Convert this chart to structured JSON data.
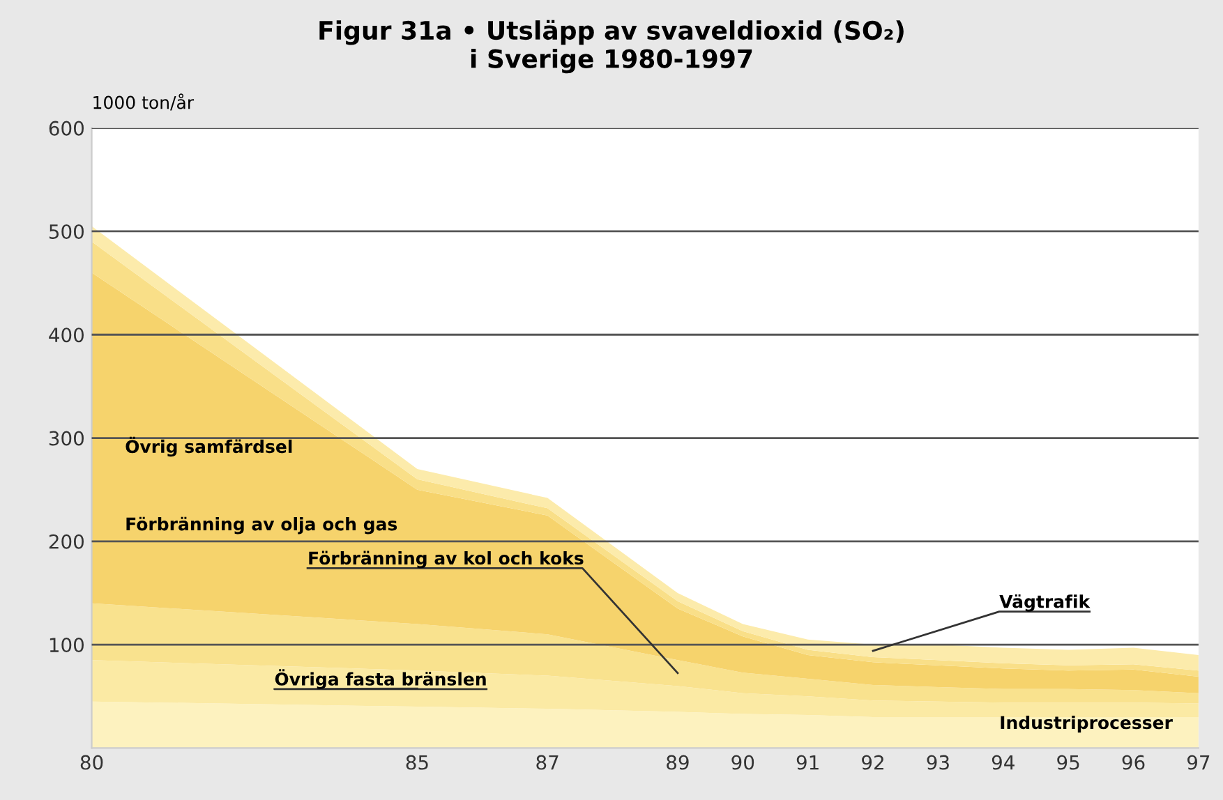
{
  "chart_data": {
    "type": "area",
    "stacked": true,
    "title": "Figur 31a • Utsläpp av svaveldioxid (SO₂)\ni Sverige 1980-1997",
    "ylabel": "1000 ton/år",
    "x": [
      1980,
      1985,
      1987,
      1989,
      1990,
      1991,
      1992,
      1993,
      1994,
      1995,
      1996,
      1997
    ],
    "series": [
      {
        "name": "Industriprocesser",
        "color": "#fdf2bf",
        "values": [
          45,
          40,
          38,
          35,
          33,
          32,
          30,
          30,
          30,
          30,
          30,
          30
        ]
      },
      {
        "name": "Övriga fasta bränslen",
        "color": "#fbeaa4",
        "values": [
          40,
          35,
          32,
          25,
          20,
          18,
          16,
          15,
          14,
          14,
          14,
          13
        ]
      },
      {
        "name": "Förbränning av kol och koks",
        "color": "#f9e28e",
        "values": [
          55,
          45,
          40,
          25,
          20,
          17,
          15,
          14,
          13,
          13,
          12,
          10
        ]
      },
      {
        "name": "Förbränning av olja och gas",
        "color": "#f6d36c",
        "values": [
          320,
          130,
          115,
          50,
          35,
          23,
          22,
          21,
          20,
          18,
          20,
          16
        ]
      },
      {
        "name": "Övrig samfärdsel",
        "color": "#f9df88",
        "values": [
          30,
          10,
          7,
          7,
          5,
          5,
          5,
          5,
          5,
          5,
          5,
          6
        ]
      },
      {
        "name": "Vägtrafik",
        "color": "#fcebab",
        "values": [
          15,
          10,
          10,
          8,
          7,
          10,
          12,
          15,
          15,
          15,
          16,
          15
        ]
      }
    ],
    "xlim": [
      1980,
      1997
    ],
    "xticks": [
      {
        "value": 1980,
        "label": "80"
      },
      {
        "value": 1985,
        "label": "85"
      },
      {
        "value": 1987,
        "label": "87"
      },
      {
        "value": 1989,
        "label": "89"
      },
      {
        "value": 1990,
        "label": "90"
      },
      {
        "value": 1991,
        "label": "91"
      },
      {
        "value": 1992,
        "label": "92"
      },
      {
        "value": 1993,
        "label": "93"
      },
      {
        "value": 1994,
        "label": "94"
      },
      {
        "value": 1995,
        "label": "95"
      },
      {
        "value": 1996,
        "label": "96"
      },
      {
        "value": 1997,
        "label": "97"
      }
    ],
    "ylim": [
      0,
      600
    ],
    "yticks": [
      100,
      200,
      300,
      400,
      500,
      600
    ],
    "grid": "y"
  }
}
